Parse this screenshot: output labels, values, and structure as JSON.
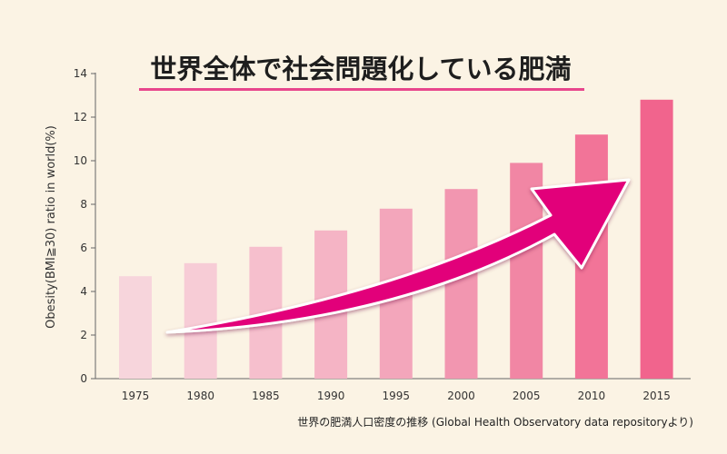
{
  "chart_data": {
    "type": "bar",
    "title": "世界全体で社会問題化している肥満",
    "ylabel": "Obesity(BMI≧30) ratio in world(%)",
    "xlabel": "",
    "source": "世界の肥満人口密度の推移 (Global Health Observatory data repositoryより)",
    "categories": [
      "1975",
      "1980",
      "1985",
      "1990",
      "1995",
      "2000",
      "2005",
      "2010",
      "2015"
    ],
    "values": [
      4.7,
      5.3,
      6.05,
      6.8,
      7.8,
      8.7,
      9.9,
      11.2,
      12.8
    ],
    "ylim": [
      0,
      14
    ],
    "yticks": [
      "0",
      "2",
      "4",
      "6",
      "8",
      "10",
      "12",
      "14"
    ],
    "bar_colors": [
      "#f7d5dc",
      "#f7ccd6",
      "#f6bfcd",
      "#f5b4c5",
      "#f3a6bb",
      "#f296b0",
      "#f186a4",
      "#f27498",
      "#f1648d"
    ],
    "arrow_color": "#e2007a",
    "title_underline_color": "#e8468c",
    "grid": false,
    "legend": "none"
  }
}
